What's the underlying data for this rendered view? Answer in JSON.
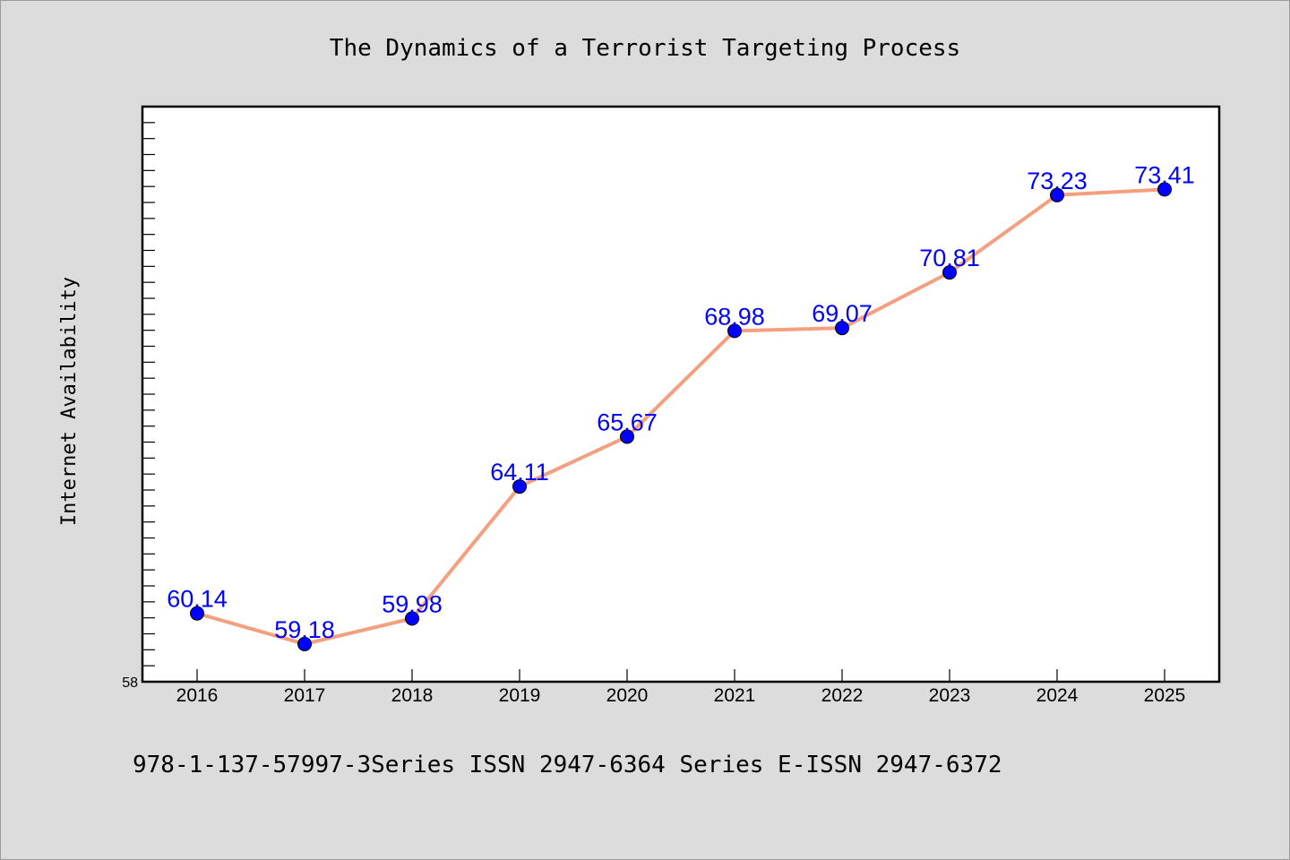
{
  "chart_data": {
    "type": "line",
    "title": "The Dynamics of a Terrorist Targeting Process",
    "xlabel": "",
    "ylabel": "Internet Availability",
    "x": [
      "2016",
      "2017",
      "2018",
      "2019",
      "2020",
      "2021",
      "2022",
      "2023",
      "2024",
      "2025"
    ],
    "series": [
      {
        "values": [
          60.14,
          59.18,
          59.98,
          64.11,
          65.67,
          68.98,
          69.07,
          70.81,
          73.23,
          73.41
        ]
      }
    ],
    "data_labels": [
      "60.14",
      "59.18",
      "59.98",
      "64.11",
      "65.67",
      "68.98",
      "69.07",
      "70.81",
      "73.23",
      "73.41"
    ],
    "ylim": [
      58,
      76
    ],
    "y_tick_labels": [
      "58"
    ],
    "grid": false,
    "legend": "none",
    "line_color": "#f4a080",
    "marker_color": "#0000ff",
    "label_color": "#0000ff",
    "caption": "978-1-137-57997-3Series ISSN 2947-6364 Series E-ISSN 2947-6372"
  }
}
